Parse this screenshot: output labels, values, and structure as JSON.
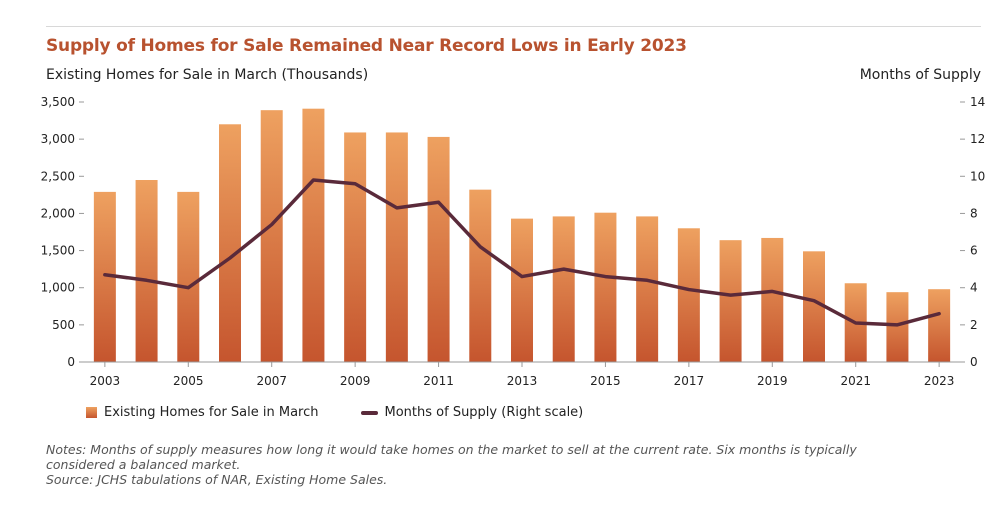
{
  "chart_data": {
    "type": "bar",
    "title": "Supply of Homes for Sale Remained Near Record Lows in Early 2023",
    "ylabel": "Existing Homes for Sale in March (Thousands)",
    "y2label": "Months of Supply",
    "ylim": [
      0,
      3500
    ],
    "y2lim": [
      0,
      14
    ],
    "yticks": [
      "0",
      "500",
      "1,000",
      "1,500",
      "2,000",
      "2,500",
      "3,000",
      "3,500"
    ],
    "y2ticks": [
      "0",
      "2",
      "4",
      "6",
      "8",
      "10",
      "12",
      "14"
    ],
    "categories": [
      "2003",
      "2004",
      "2005",
      "2006",
      "2007",
      "2008",
      "2009",
      "2010",
      "2011",
      "2012",
      "2013",
      "2014",
      "2015",
      "2016",
      "2017",
      "2018",
      "2019",
      "2020",
      "2021",
      "2022",
      "2023"
    ],
    "xtick_labels": [
      "2003",
      "",
      "2005",
      "",
      "2007",
      "",
      "2009",
      "",
      "2011",
      "",
      "2013",
      "",
      "2015",
      "",
      "2017",
      "",
      "2019",
      "",
      "2021",
      "",
      "2023"
    ],
    "series": [
      {
        "name": "Existing Homes for Sale in March",
        "type": "bar",
        "axis": "left",
        "values": [
          2290,
          2450,
          2290,
          3200,
          3390,
          3410,
          3090,
          3090,
          3030,
          2320,
          1930,
          1960,
          2010,
          1960,
          1800,
          1640,
          1670,
          1490,
          1060,
          940,
          980
        ]
      },
      {
        "name": "Months of Supply (Right scale)",
        "type": "line",
        "axis": "right",
        "values": [
          4.7,
          4.4,
          4.0,
          5.6,
          7.4,
          9.8,
          9.6,
          8.3,
          8.6,
          6.2,
          4.6,
          5.0,
          4.6,
          4.4,
          3.9,
          3.6,
          3.8,
          3.3,
          2.1,
          2.0,
          2.6
        ]
      }
    ],
    "legend_position": "bottom-left",
    "grid": false
  },
  "notes": {
    "line1": "Notes: Months of supply measures how long it would take homes on the market to sell at the current rate. Six months is typically",
    "line2": "considered a balanced market.",
    "source": "Source: JCHS tabulations of NAR, Existing Home Sales."
  },
  "colors": {
    "title": "#b8522f",
    "bar_top": "#eea160",
    "bar_bottom": "#c5552e",
    "line": "#5a2a3a"
  }
}
